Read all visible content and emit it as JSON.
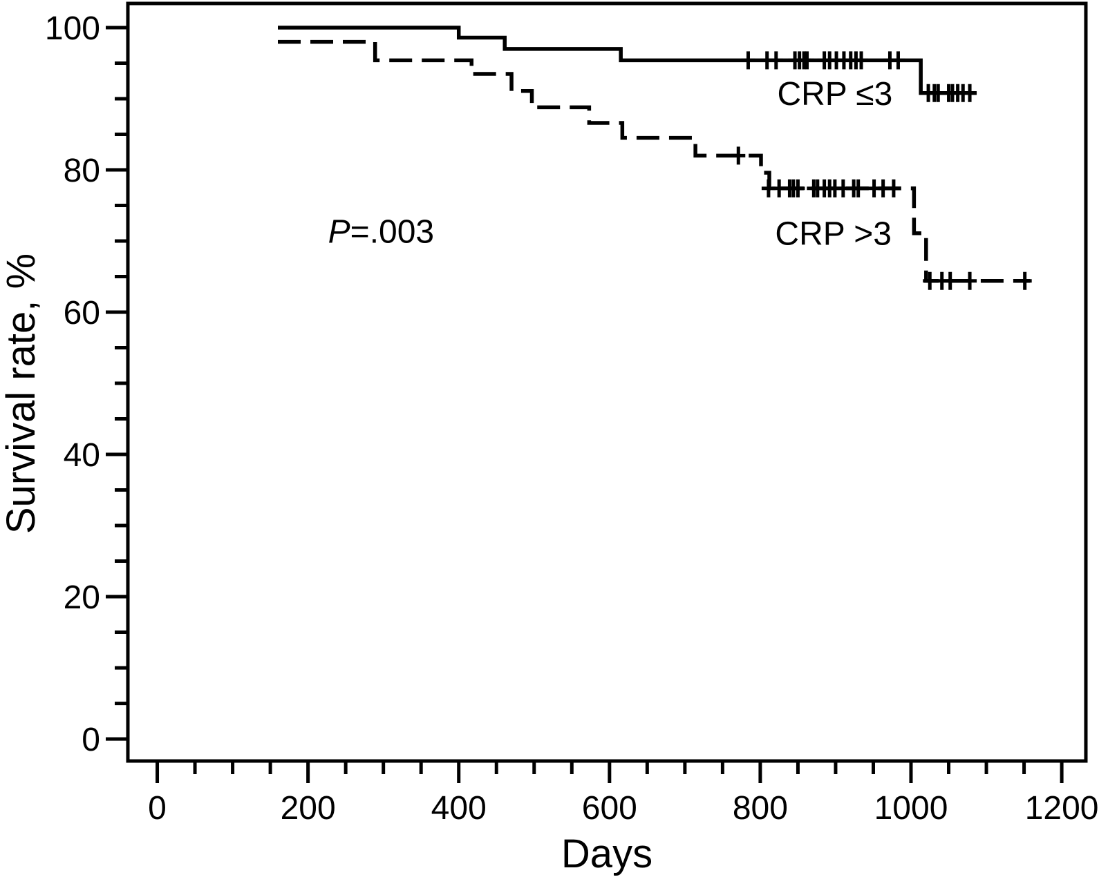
{
  "page": {
    "background": "#ffffff",
    "foreground": "#000000"
  },
  "chart_data": {
    "type": "line",
    "subtype": "kaplan-meier-step",
    "title": "",
    "xlabel": "Days",
    "ylabel": "Survival rate, %",
    "axis_color": "#000000",
    "background_color": "#ffffff",
    "grid": false,
    "legend_position": "inline-labels",
    "xlim": [
      -39,
      1232
    ],
    "ylim": [
      -3.1,
      103.4
    ],
    "x_major_ticks": [
      0,
      200,
      400,
      600,
      800,
      1000,
      1200
    ],
    "x_minor_step": 50,
    "y_major_ticks": [
      0,
      20,
      40,
      60,
      80,
      100
    ],
    "y_minor_step": 5,
    "annotations": [
      {
        "text": "P=.003",
        "italic_prefix": "P",
        "x": 297,
        "y": 71.4
      }
    ],
    "series": [
      {
        "name": "CRP ≤3",
        "line_style": "solid",
        "color": "#000000",
        "label": {
          "text": "CRP ≤3",
          "x": 899,
          "y": 90.8
        },
        "steps": [
          [
            160,
            100.0
          ],
          [
            400,
            98.6
          ],
          [
            461,
            97.0
          ],
          [
            615,
            95.4
          ],
          [
            1013,
            90.8
          ]
        ],
        "end_day": 1087,
        "censor_marks": [
          [
            784,
            95.4
          ],
          [
            809,
            95.4
          ],
          [
            821,
            95.4
          ],
          [
            846,
            95.4
          ],
          [
            852,
            95.4
          ],
          [
            858,
            95.4
          ],
          [
            862,
            95.4
          ],
          [
            885,
            95.4
          ],
          [
            892,
            95.4
          ],
          [
            901,
            95.4
          ],
          [
            911,
            95.4
          ],
          [
            920,
            95.4
          ],
          [
            927,
            95.4
          ],
          [
            934,
            95.4
          ],
          [
            972,
            95.4
          ],
          [
            983,
            95.4
          ],
          [
            1023,
            90.8
          ],
          [
            1031,
            90.8
          ],
          [
            1036,
            90.8
          ],
          [
            1050,
            90.8
          ],
          [
            1055,
            90.8
          ],
          [
            1062,
            90.8
          ],
          [
            1069,
            90.8
          ],
          [
            1078,
            90.8
          ]
        ]
      },
      {
        "name": "CRP >3",
        "line_style": "dashed",
        "color": "#000000",
        "label": {
          "text": "CRP >3",
          "x": 897,
          "y": 71.1
        },
        "steps": [
          [
            160,
            98.0
          ],
          [
            289,
            95.4
          ],
          [
            417,
            93.5
          ],
          [
            470,
            91.1
          ],
          [
            497,
            88.8
          ],
          [
            573,
            86.6
          ],
          [
            617,
            84.5
          ],
          [
            714,
            82.0
          ],
          [
            801,
            79.6
          ],
          [
            812,
            77.4
          ],
          [
            1004,
            71.1
          ],
          [
            1020,
            64.4
          ]
        ],
        "end_day": 1158,
        "censor_marks": [
          [
            771,
            82.0
          ],
          [
            811,
            77.4
          ],
          [
            825,
            77.4
          ],
          [
            839,
            77.4
          ],
          [
            844,
            77.4
          ],
          [
            850,
            77.4
          ],
          [
            871,
            77.4
          ],
          [
            876,
            77.4
          ],
          [
            885,
            77.4
          ],
          [
            892,
            77.4
          ],
          [
            899,
            77.4
          ],
          [
            910,
            77.4
          ],
          [
            924,
            77.4
          ],
          [
            930,
            77.4
          ],
          [
            951,
            77.4
          ],
          [
            963,
            77.4
          ],
          [
            977,
            77.4
          ],
          [
            1025,
            64.4
          ],
          [
            1041,
            64.4
          ],
          [
            1052,
            64.4
          ],
          [
            1078,
            64.4
          ],
          [
            1151,
            64.4
          ]
        ]
      }
    ]
  }
}
